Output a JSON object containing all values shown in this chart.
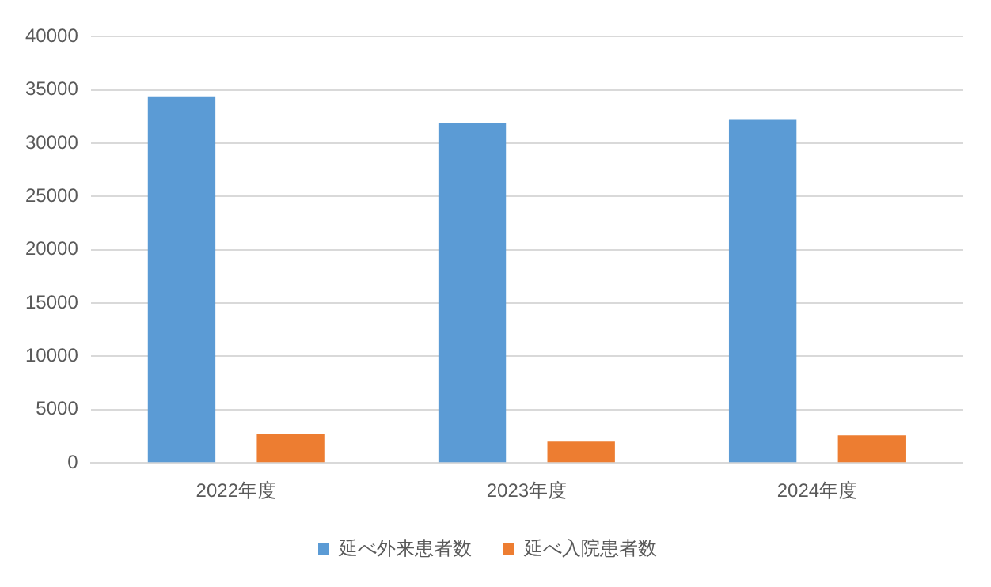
{
  "chart_data": {
    "type": "bar",
    "categories": [
      "2022年度",
      "2023年度",
      "2024年度"
    ],
    "series": [
      {
        "name": "延べ外来患者数",
        "color": "#5b9bd5",
        "values": [
          34400,
          31900,
          32200
        ]
      },
      {
        "name": "延べ入院患者数",
        "color": "#ed7d31",
        "values": [
          2750,
          2000,
          2600
        ]
      }
    ],
    "ylim": [
      0,
      40000
    ],
    "yticks": [
      0,
      5000,
      10000,
      15000,
      20000,
      25000,
      30000,
      35000,
      40000
    ],
    "grid": "y",
    "legend": "bottom"
  }
}
